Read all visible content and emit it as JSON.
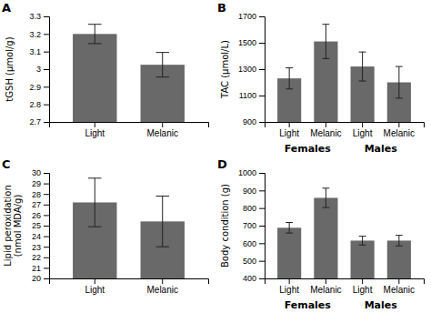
{
  "chart_data": [
    {
      "type": "bar",
      "title": "A",
      "categories": [
        "Light",
        "Melanic"
      ],
      "values": [
        3.2,
        3.025
      ],
      "errors": [
        0.055,
        0.07
      ],
      "ylabel": "tGSH (μmol/g)",
      "ylim": [
        2.7,
        3.3
      ],
      "yticks": [
        2.7,
        2.8,
        2.9,
        3,
        3.1,
        3.2,
        3.3
      ],
      "color": "#696969"
    },
    {
      "type": "bar",
      "title": "B",
      "categories": [
        "Light",
        "Melanic",
        "Light",
        "Melanic"
      ],
      "values": [
        1230,
        1510,
        1320,
        1200
      ],
      "errors": [
        80,
        130,
        110,
        120
      ],
      "ylabel": "TAC (μmol/L)",
      "ylim": [
        900,
        1700
      ],
      "yticks": [
        900,
        1100,
        1300,
        1500,
        1700
      ],
      "group_labels": [
        "Females",
        "Males"
      ],
      "color": "#696969"
    },
    {
      "type": "bar",
      "title": "C",
      "categories": [
        "Light",
        "Melanic"
      ],
      "values": [
        27.2,
        25.4
      ],
      "errors": [
        2.3,
        2.4
      ],
      "ylabel": "Lipid peroxidation\n(nmol MDA/g)",
      "ylim": [
        20,
        30
      ],
      "yticks": [
        20,
        21,
        22,
        23,
        24,
        25,
        26,
        27,
        28,
        29,
        30
      ],
      "color": "#696969"
    },
    {
      "type": "bar",
      "title": "D",
      "categories": [
        "Light",
        "Melanic",
        "Light",
        "Melanic"
      ],
      "values": [
        688,
        858,
        615,
        615
      ],
      "errors": [
        30,
        55,
        25,
        30
      ],
      "ylabel": "Body condition (g)",
      "ylim": [
        400,
        1000
      ],
      "yticks": [
        400,
        500,
        600,
        700,
        800,
        900,
        1000
      ],
      "group_labels": [
        "Females",
        "Males"
      ],
      "color": "#696969"
    }
  ]
}
